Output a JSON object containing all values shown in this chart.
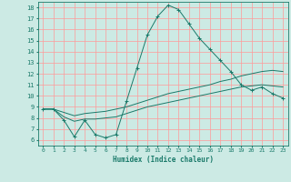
{
  "xlabel": "Humidex (Indice chaleur)",
  "background_color": "#cceae4",
  "grid_color": "#ff9999",
  "line_color": "#1a7a6a",
  "xlim": [
    -0.5,
    23.5
  ],
  "ylim": [
    5.5,
    18.5
  ],
  "xticks": [
    0,
    1,
    2,
    3,
    4,
    5,
    6,
    7,
    8,
    9,
    10,
    11,
    12,
    13,
    14,
    15,
    16,
    17,
    18,
    19,
    20,
    21,
    22,
    23
  ],
  "yticks": [
    6,
    7,
    8,
    9,
    10,
    11,
    12,
    13,
    14,
    15,
    16,
    17,
    18
  ],
  "line1_x": [
    0,
    1,
    2,
    3,
    4,
    5,
    6,
    7,
    8,
    9,
    10,
    11,
    12,
    13,
    14,
    15,
    16,
    17,
    18,
    19,
    20,
    21,
    22,
    23
  ],
  "line1_y": [
    8.8,
    8.8,
    7.8,
    6.3,
    7.8,
    6.5,
    6.2,
    6.5,
    9.5,
    12.5,
    15.5,
    17.2,
    18.2,
    17.8,
    16.5,
    15.2,
    14.2,
    13.2,
    12.2,
    11.0,
    10.5,
    10.8,
    10.2,
    9.8
  ],
  "line2_x": [
    0,
    1,
    2,
    3,
    4,
    5,
    6,
    7,
    8,
    9,
    10,
    11,
    12,
    13,
    14,
    15,
    16,
    17,
    18,
    19,
    20,
    21,
    22,
    23
  ],
  "line2_y": [
    8.8,
    8.8,
    8.5,
    8.2,
    8.4,
    8.5,
    8.6,
    8.8,
    9.0,
    9.3,
    9.6,
    9.9,
    10.2,
    10.4,
    10.6,
    10.8,
    11.0,
    11.3,
    11.5,
    11.8,
    12.0,
    12.2,
    12.3,
    12.2
  ],
  "line3_x": [
    0,
    1,
    2,
    3,
    4,
    5,
    6,
    7,
    8,
    9,
    10,
    11,
    12,
    13,
    14,
    15,
    16,
    17,
    18,
    19,
    20,
    21,
    22,
    23
  ],
  "line3_y": [
    8.8,
    8.8,
    8.1,
    7.7,
    7.9,
    7.9,
    8.0,
    8.1,
    8.4,
    8.7,
    9.0,
    9.2,
    9.4,
    9.6,
    9.8,
    10.0,
    10.2,
    10.4,
    10.6,
    10.8,
    10.9,
    11.0,
    10.9,
    10.8
  ]
}
